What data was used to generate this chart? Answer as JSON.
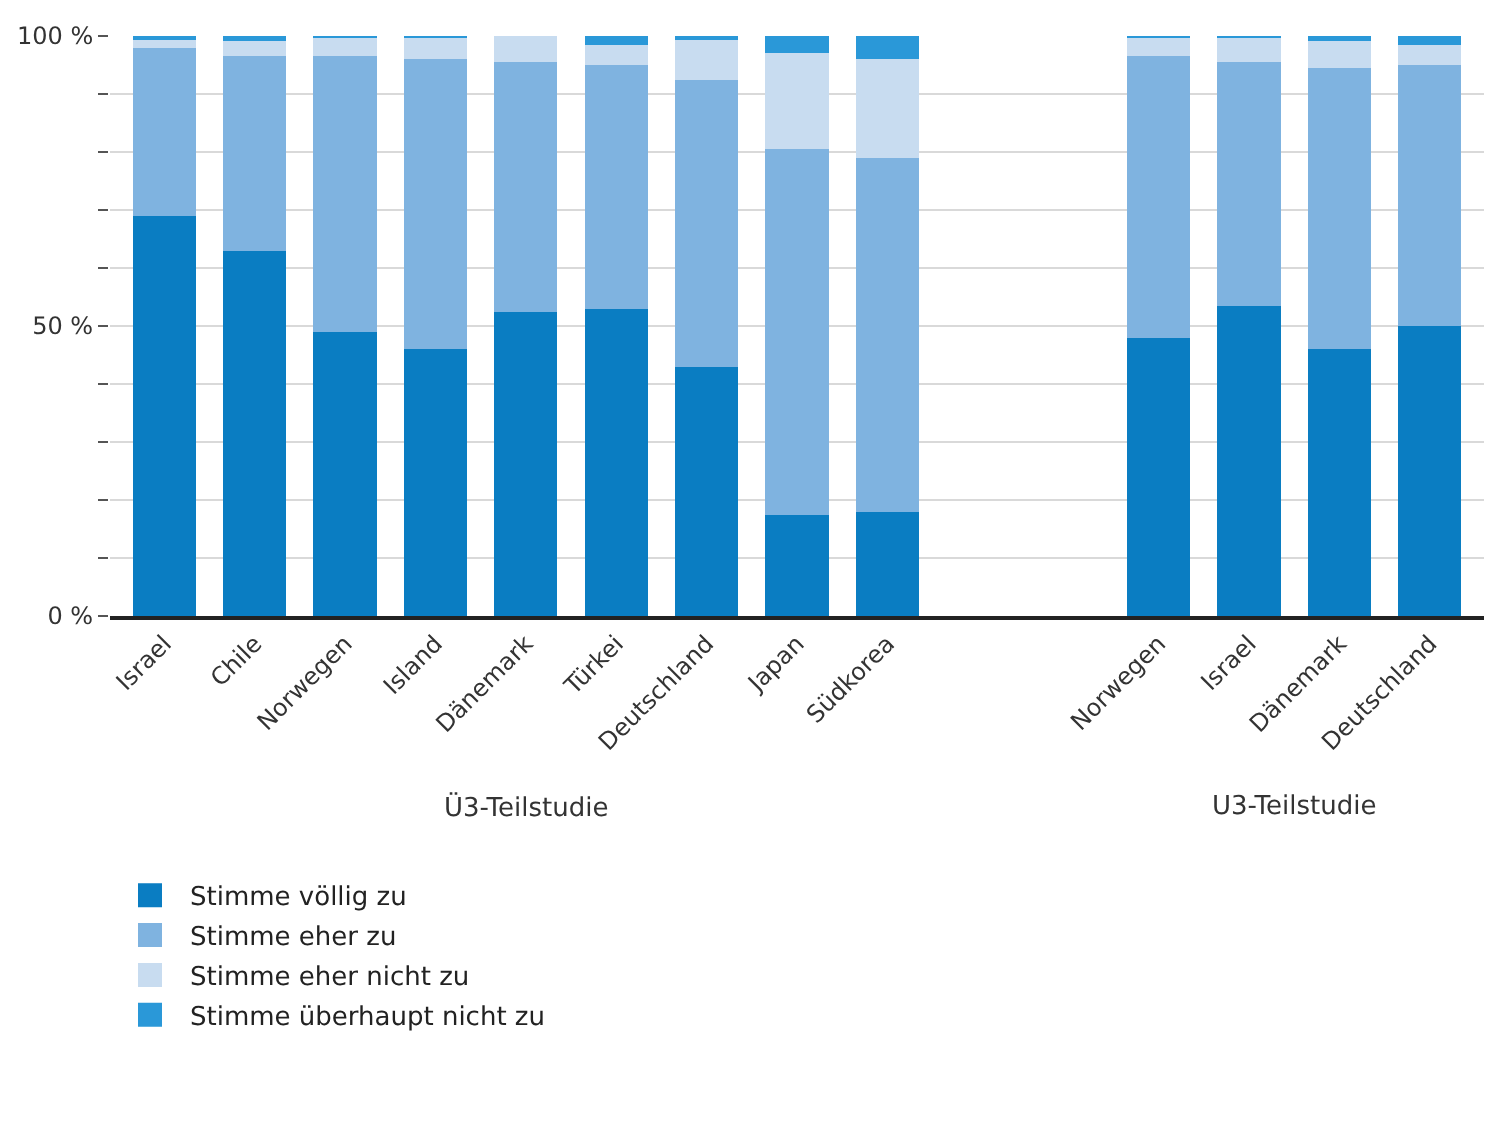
{
  "chart_data": {
    "type": "bar",
    "stacked": true,
    "categories": [
      "Israel",
      "Chile",
      "Norwegen",
      "Island",
      "Dänemark",
      "Türkei",
      "Deutschland",
      "Japan",
      "Südkorea",
      null,
      null,
      "Norwegen",
      "Israel",
      "Dänemark",
      "Deutschland"
    ],
    "series": [
      {
        "name": "Stimme völlig zu",
        "color": "#0a7dc2",
        "values": [
          69,
          63,
          49,
          46,
          52.5,
          53,
          43,
          17.5,
          18,
          null,
          null,
          48,
          53.5,
          46,
          50
        ]
      },
      {
        "name": "Stimme eher zu",
        "color": "#7fb3e0",
        "values": [
          29,
          33.5,
          47.5,
          50,
          43,
          42,
          49.5,
          63,
          61,
          null,
          null,
          48.5,
          42,
          48.5,
          45
        ]
      },
      {
        "name": "Stimme eher nicht zu",
        "color": "#c8dcf0",
        "values": [
          1.5,
          2.7,
          3.3,
          3.8,
          4.5,
          3.5,
          7,
          16.5,
          17,
          null,
          null,
          3.3,
          4.2,
          4.7,
          3.5
        ]
      },
      {
        "name": "Stimme überhaupt nicht zu",
        "color": "#2a98d8",
        "values": [
          0.5,
          0.8,
          0.2,
          0.2,
          0,
          1.5,
          0.5,
          3,
          4,
          null,
          null,
          0.2,
          0.3,
          0.8,
          1.5
        ]
      }
    ],
    "ylim": [
      0,
      100
    ],
    "yticks": [
      {
        "value": 0,
        "label": "0 %"
      },
      {
        "value": 10,
        "label": null
      },
      {
        "value": 20,
        "label": null
      },
      {
        "value": 30,
        "label": null
      },
      {
        "value": 40,
        "label": null
      },
      {
        "value": 50,
        "label": "50 %"
      },
      {
        "value": 60,
        "label": null
      },
      {
        "value": 70,
        "label": null
      },
      {
        "value": 80,
        "label": null
      },
      {
        "value": 90,
        "label": null
      },
      {
        "value": 100,
        "label": "100 %"
      }
    ],
    "annotations": [
      "Ü3-Teilstudie",
      "U3-Teilstudie"
    ],
    "grid": "y",
    "legend": "bottom left"
  }
}
